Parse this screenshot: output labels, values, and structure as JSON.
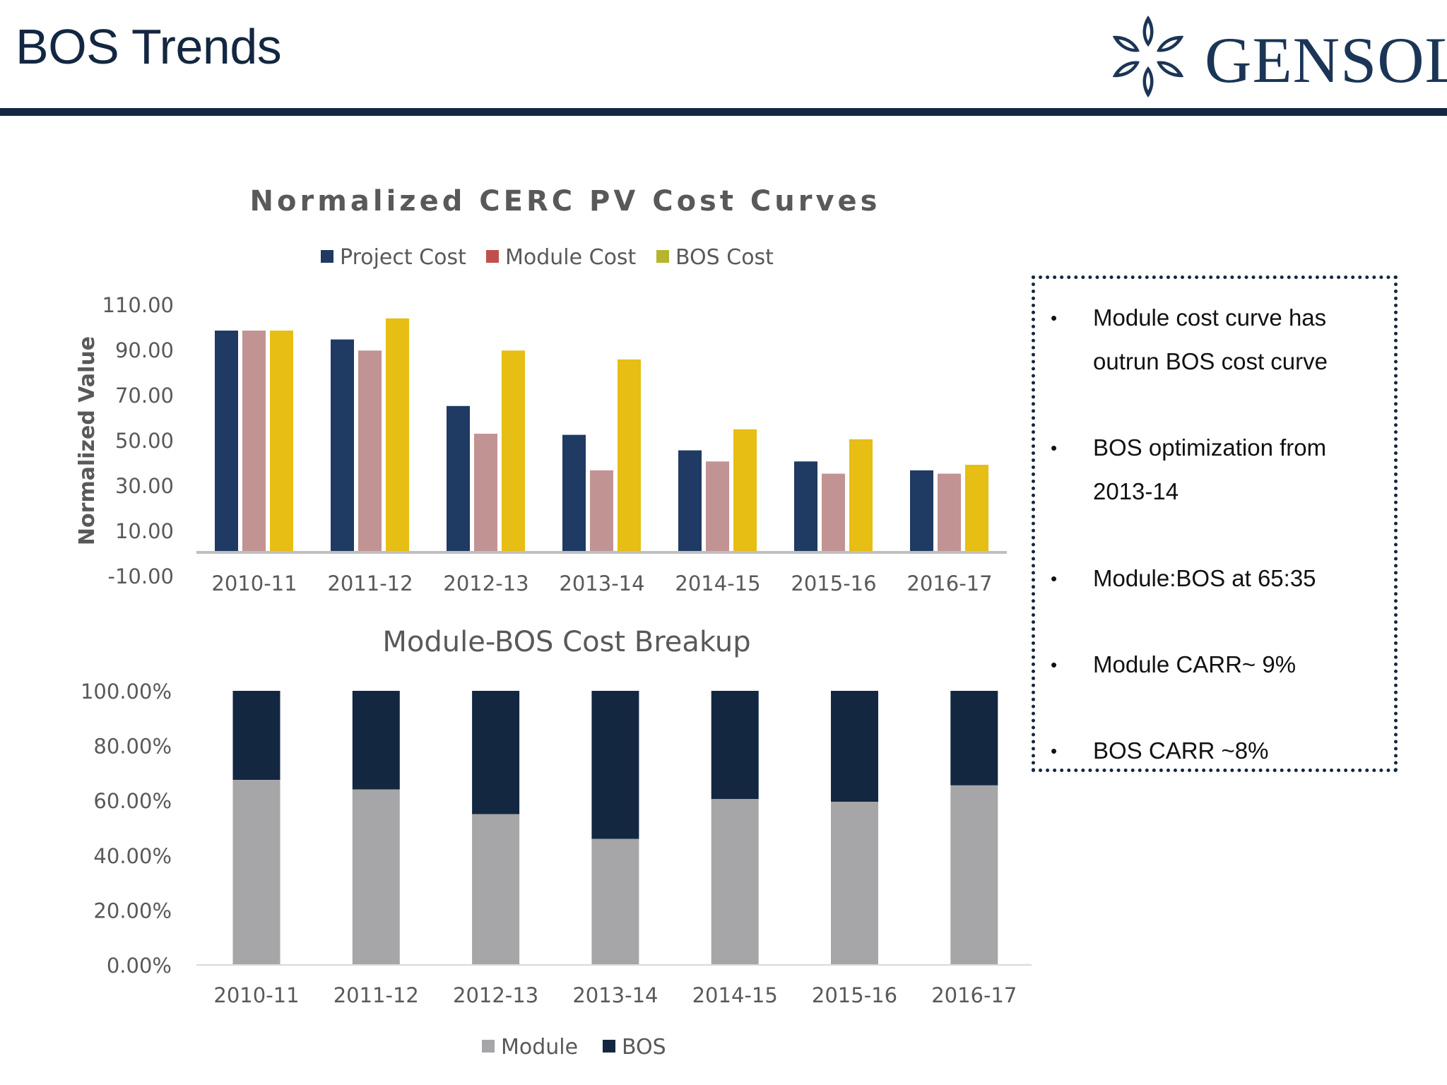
{
  "title": "BOS Trends",
  "brand": {
    "name": "GENSOL",
    "color": "#1b3556",
    "icon": "gensol-star-logo-icon"
  },
  "colors": {
    "project": "#1f3a63",
    "module": "#c29393",
    "bos": "#e6be14",
    "module_share": "#a6a6a8",
    "bos_share": "#132741"
  },
  "chart_data": [
    {
      "type": "bar",
      "title": "Normalized CERC PV Cost Curves",
      "xlabel": "",
      "ylabel": "Normalized Value",
      "ylim": [
        -10,
        110
      ],
      "yticks": [
        "110.00",
        "90.00",
        "70.00",
        "50.00",
        "30.00",
        "10.00",
        "-10.00"
      ],
      "legend_position": "top",
      "categories": [
        "2010-11",
        "2011-12",
        "2012-13",
        "2013-14",
        "2014-15",
        "2015-16",
        "2016-17"
      ],
      "series": [
        {
          "name": "Project Cost",
          "values": [
            100,
            96,
            66,
            53,
            46,
            41,
            37
          ]
        },
        {
          "name": "Module Cost",
          "values": [
            100,
            91,
            53.5,
            37,
            41,
            35.5,
            35.5
          ]
        },
        {
          "name": "BOS Cost",
          "values": [
            100,
            105.5,
            91,
            87,
            55.5,
            51,
            39.5
          ]
        }
      ]
    },
    {
      "type": "bar",
      "stacked": true,
      "title": "Module-BOS Cost Breakup",
      "xlabel": "",
      "ylabel": "",
      "ylim": [
        0,
        100
      ],
      "yticks": [
        "100.00%",
        "80.00%",
        "60.00%",
        "40.00%",
        "20.00%",
        "0.00%"
      ],
      "legend_position": "bottom",
      "categories": [
        "2010-11",
        "2011-12",
        "2012-13",
        "2013-14",
        "2014-15",
        "2015-16",
        "2016-17"
      ],
      "series": [
        {
          "name": "Module",
          "values": [
            67.5,
            64,
            55,
            46,
            60.5,
            59.5,
            65.5
          ]
        },
        {
          "name": "BOS",
          "values": [
            32.5,
            36,
            45,
            54,
            39.5,
            40.5,
            34.5
          ]
        }
      ]
    }
  ],
  "notes": [
    {
      "bullet": "•",
      "text": "Module cost curve has outrun BOS cost curve"
    },
    {
      "bullet": "•",
      "text": "BOS optimization from 2013-14"
    },
    {
      "bullet": "•",
      "text": "Module:BOS at 65:35"
    },
    {
      "bullet": "•",
      "text": "Module CARR~ 9%"
    },
    {
      "bullet": "•",
      "text": "BOS CARR ~8%"
    }
  ]
}
